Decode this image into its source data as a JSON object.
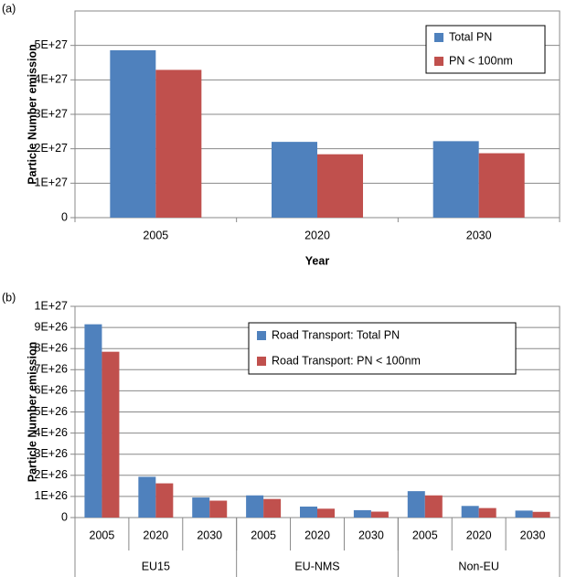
{
  "chart_data": [
    {
      "type": "bar",
      "label": "(a)",
      "y_label": "Particle Number emission",
      "x_label": "Year",
      "categories": [
        "2005",
        "2020",
        "2030"
      ],
      "series": [
        {
          "name": "Total PN",
          "color": "#4f81bd",
          "values": [
            4.86e+27,
            2.2e+27,
            2.22e+27
          ]
        },
        {
          "name": "PN < 100nm",
          "color": "#c0504d",
          "values": [
            4.29e+27,
            1.84e+27,
            1.87e+27
          ]
        }
      ],
      "ylim": [
        0,
        6e+27
      ],
      "yticks": [
        0,
        {
          "value": 1e+27,
          "label": "1E+27"
        },
        {
          "value": 2e+27,
          "label": "2E+27"
        },
        {
          "value": 3e+27,
          "label": "3E+27"
        },
        {
          "value": 4e+27,
          "label": "4E+27"
        },
        {
          "value": 5e+27,
          "label": "5E+27"
        }
      ],
      "grid": true,
      "legend": "upper right"
    },
    {
      "type": "bar",
      "label": "(b)",
      "y_label": "Particle Number emission",
      "categories": [
        "2005",
        "2020",
        "2030",
        "2005",
        "2020",
        "2030",
        "2005",
        "2020",
        "2030"
      ],
      "groups": [
        "EU15",
        "EU-NMS",
        "Non-EU"
      ],
      "series": [
        {
          "name": "Road Transport: Total PN",
          "color": "#4f81bd",
          "values": [
            9.15e+26,
            1.93e+26,
            9.5e+25,
            1.05e+26,
            5.2e+25,
            3.5e+25,
            1.25e+26,
            5.5e+25,
            3.3e+25
          ]
        },
        {
          "name": "Road Transport: PN < 100nm",
          "color": "#c0504d",
          "values": [
            7.85e+26,
            1.62e+26,
            8e+25,
            8.8e+25,
            4.2e+25,
            2.8e+25,
            1.05e+26,
            4.5e+25,
            2.7e+25
          ]
        }
      ],
      "ylim": [
        0,
        1e+27
      ],
      "yticks": [
        0,
        {
          "value": 1e+26,
          "label": "1E+26"
        },
        {
          "value": 2e+26,
          "label": "2E+26"
        },
        {
          "value": 3e+26,
          "label": "3E+26"
        },
        {
          "value": 4e+26,
          "label": "4E+26"
        },
        {
          "value": 5e+26,
          "label": "5E+26"
        },
        {
          "value": 6e+26,
          "label": "6E+26"
        },
        {
          "value": 7e+26,
          "label": "7E+26"
        },
        {
          "value": 8e+26,
          "label": "8E+26"
        },
        {
          "value": 9e+26,
          "label": "9E+26"
        },
        {
          "value": 1e+27,
          "label": "1E+27"
        }
      ],
      "grid": true,
      "legend": "upper center"
    }
  ]
}
